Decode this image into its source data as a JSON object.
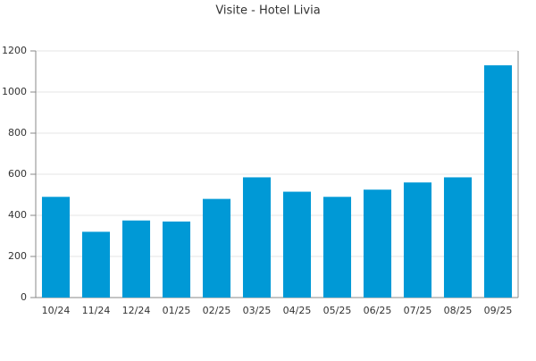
{
  "chart_data": {
    "type": "bar",
    "title": "Visite - Hotel Livia",
    "categories": [
      "10/24",
      "11/24",
      "12/24",
      "01/25",
      "02/25",
      "03/25",
      "04/25",
      "05/25",
      "06/25",
      "07/25",
      "08/25",
      "09/25"
    ],
    "values": [
      490,
      320,
      375,
      370,
      480,
      585,
      515,
      490,
      525,
      560,
      585,
      1130
    ],
    "color": "#0099d6",
    "ylim": [
      0,
      1200
    ],
    "yticks": [
      0,
      200,
      400,
      600,
      800,
      1000,
      1200
    ],
    "grid": true
  }
}
